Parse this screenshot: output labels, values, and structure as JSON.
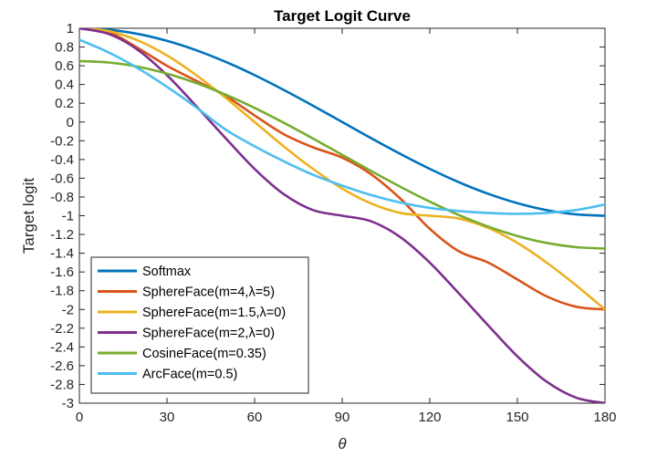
{
  "chart_data": {
    "type": "line",
    "title": "Target Logit Curve",
    "xlabel": "θ",
    "ylabel": "Target logit",
    "xlim": [
      0,
      180
    ],
    "ylim": [
      -3,
      1
    ],
    "xticks": [
      "0",
      "30",
      "60",
      "90",
      "120",
      "150",
      "180"
    ],
    "yticks": [
      "1",
      "0.8",
      "0.6",
      "0.4",
      "0.2",
      "0",
      "-0.2",
      "-0.4",
      "-0.6",
      "-0.8",
      "-1",
      "-1.2",
      "-1.4",
      "-1.6",
      "-1.8",
      "-2",
      "-2.2",
      "-2.4",
      "-2.6",
      "-2.8",
      "-3"
    ],
    "grid": false,
    "legend_position": "bottom-left",
    "series": [
      {
        "name": "Softmax",
        "color": "#0072BD",
        "x": [
          0,
          10,
          20,
          30,
          40,
          50,
          60,
          70,
          80,
          90,
          100,
          110,
          120,
          130,
          140,
          150,
          160,
          170,
          180
        ],
        "y": [
          1.0,
          0.985,
          0.94,
          0.866,
          0.766,
          0.643,
          0.5,
          0.342,
          0.174,
          0.0,
          -0.174,
          -0.342,
          -0.5,
          -0.643,
          -0.766,
          -0.866,
          -0.94,
          -0.985,
          -1.0
        ]
      },
      {
        "name": "SphereFace(m=4,λ=5)",
        "color": "#D95319",
        "x": [
          0,
          10,
          20,
          30,
          40,
          50,
          60,
          70,
          80,
          90,
          100,
          110,
          120,
          130,
          140,
          150,
          160,
          170,
          180
        ],
        "y": [
          1.0,
          0.96,
          0.79,
          0.6,
          0.44,
          0.28,
          0.07,
          -0.13,
          -0.27,
          -0.38,
          -0.56,
          -0.82,
          -1.14,
          -1.38,
          -1.5,
          -1.68,
          -1.86,
          -1.97,
          -2.0
        ]
      },
      {
        "name": "SphereFace(m=1.5,λ=0)",
        "color": "#EDB120",
        "x": [
          0,
          10,
          20,
          30,
          40,
          50,
          60,
          70,
          80,
          90,
          100,
          110,
          120,
          130,
          140,
          150,
          160,
          170,
          180
        ],
        "y": [
          1.0,
          0.97,
          0.87,
          0.71,
          0.5,
          0.26,
          0.0,
          -0.26,
          -0.5,
          -0.71,
          -0.87,
          -0.97,
          -1.0,
          -1.03,
          -1.13,
          -1.29,
          -1.5,
          -1.74,
          -2.0
        ]
      },
      {
        "name": "SphereFace(m=2,λ=0)",
        "color": "#7E2F8E",
        "x": [
          0,
          10,
          20,
          30,
          40,
          50,
          60,
          70,
          80,
          90,
          100,
          110,
          120,
          130,
          140,
          150,
          160,
          170,
          180
        ],
        "y": [
          1.0,
          0.94,
          0.77,
          0.5,
          0.17,
          -0.17,
          -0.5,
          -0.77,
          -0.94,
          -1.0,
          -1.06,
          -1.23,
          -1.5,
          -1.83,
          -2.17,
          -2.5,
          -2.77,
          -2.94,
          -3.0
        ]
      },
      {
        "name": "CosineFace(m=0.35)",
        "color": "#77AC30",
        "x": [
          0,
          10,
          20,
          30,
          40,
          50,
          60,
          70,
          80,
          90,
          100,
          110,
          120,
          130,
          140,
          150,
          160,
          170,
          180
        ],
        "y": [
          0.65,
          0.635,
          0.59,
          0.516,
          0.416,
          0.293,
          0.15,
          -0.008,
          -0.176,
          -0.35,
          -0.524,
          -0.692,
          -0.85,
          -0.993,
          -1.116,
          -1.216,
          -1.29,
          -1.335,
          -1.35
        ]
      },
      {
        "name": "ArcFace(m=0.5)",
        "color": "#4DBEEE",
        "x": [
          0,
          10,
          20,
          30,
          40,
          50,
          60,
          70,
          80,
          90,
          100,
          110,
          120,
          130,
          140,
          150,
          160,
          170,
          180
        ],
        "y": [
          0.878,
          0.743,
          0.574,
          0.375,
          0.156,
          -0.079,
          -0.259,
          -0.419,
          -0.563,
          -0.679,
          -0.78,
          -0.86,
          -0.917,
          -0.95,
          -0.97,
          -0.98,
          -0.97,
          -0.94,
          -0.88
        ]
      }
    ]
  }
}
